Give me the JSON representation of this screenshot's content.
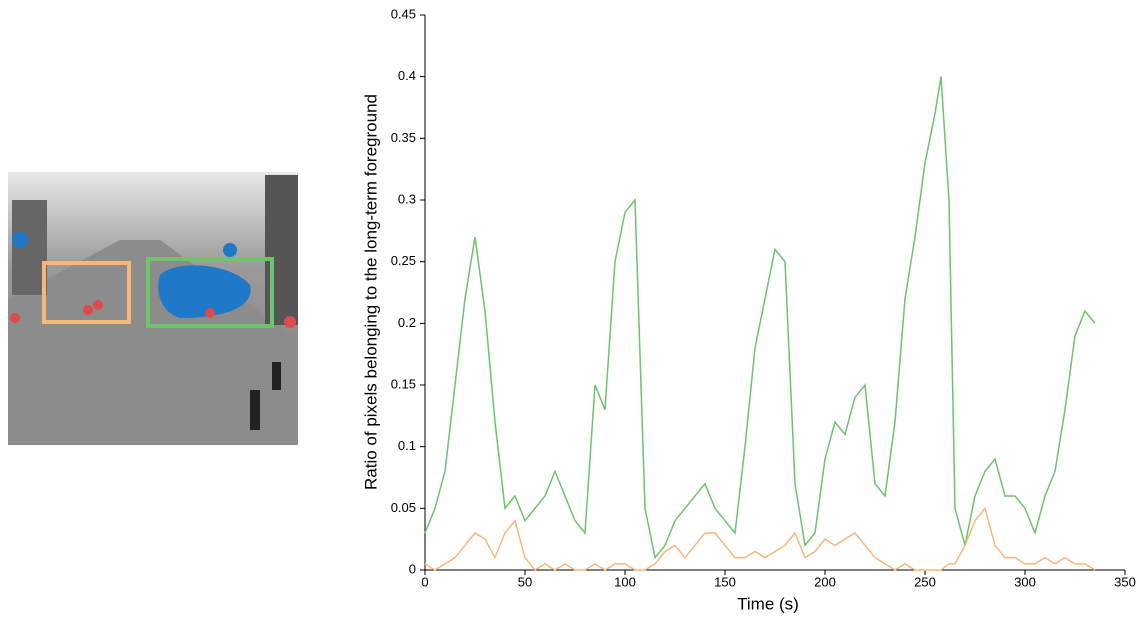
{
  "chart_data": {
    "type": "line",
    "x_label": "Time (s)",
    "y_label": "Ratio of pixels belonging to the long-term foreground",
    "x": [
      0,
      5,
      10,
      15,
      20,
      25,
      30,
      35,
      40,
      45,
      50,
      55,
      60,
      65,
      70,
      75,
      80,
      85,
      90,
      95,
      100,
      105,
      110,
      115,
      120,
      125,
      130,
      135,
      140,
      145,
      150,
      155,
      160,
      165,
      170,
      175,
      180,
      185,
      190,
      195,
      200,
      205,
      210,
      215,
      220,
      225,
      230,
      235,
      240,
      245,
      250,
      255,
      258,
      262,
      265,
      270,
      275,
      280,
      285,
      290,
      295,
      300,
      305,
      310,
      315,
      320,
      325,
      330,
      335
    ],
    "series": [
      {
        "color": "#6cc46c",
        "values": [
          0.03,
          0.05,
          0.08,
          0.15,
          0.22,
          0.27,
          0.21,
          0.12,
          0.05,
          0.06,
          0.04,
          0.05,
          0.06,
          0.08,
          0.06,
          0.04,
          0.03,
          0.15,
          0.13,
          0.25,
          0.29,
          0.3,
          0.05,
          0.01,
          0.02,
          0.04,
          0.05,
          0.06,
          0.07,
          0.05,
          0.04,
          0.03,
          0.1,
          0.18,
          0.22,
          0.26,
          0.25,
          0.07,
          0.02,
          0.03,
          0.09,
          0.12,
          0.11,
          0.14,
          0.15,
          0.07,
          0.06,
          0.12,
          0.22,
          0.27,
          0.33,
          0.37,
          0.4,
          0.3,
          0.05,
          0.02,
          0.06,
          0.08,
          0.09,
          0.06,
          0.06,
          0.05,
          0.03,
          0.06,
          0.08,
          0.13,
          0.19,
          0.21,
          0.2
        ]
      },
      {
        "color": "#f7b77a",
        "values": [
          0.005,
          0,
          0.005,
          0.01,
          0.02,
          0.03,
          0.025,
          0.01,
          0.03,
          0.04,
          0.01,
          0,
          0.005,
          0,
          0.005,
          0,
          0,
          0.005,
          0,
          0.005,
          0.005,
          0,
          0,
          0.005,
          0.015,
          0.02,
          0.01,
          0.02,
          0.03,
          0.03,
          0.02,
          0.01,
          0.01,
          0.015,
          0.01,
          0.015,
          0.02,
          0.03,
          0.01,
          0.015,
          0.025,
          0.02,
          0.025,
          0.03,
          0.02,
          0.01,
          0.005,
          0,
          0.005,
          0,
          0,
          0,
          0,
          0.005,
          0.005,
          0.02,
          0.04,
          0.05,
          0.02,
          0.01,
          0.01,
          0.005,
          0.005,
          0.01,
          0.005,
          0.01,
          0.005,
          0.005,
          0
        ]
      }
    ],
    "xlim": [
      0,
      350
    ],
    "xticks": [
      0,
      50,
      100,
      150,
      200,
      250,
      300,
      350
    ],
    "ylim": [
      0,
      0.45
    ],
    "yticks": [
      0,
      0.05,
      0.1,
      0.15,
      0.2,
      0.25,
      0.3,
      0.35,
      0.4,
      0.45
    ]
  }
}
